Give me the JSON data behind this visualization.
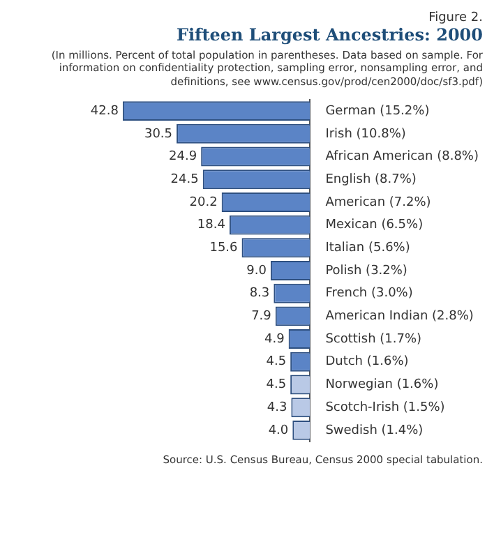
{
  "chart_data": {
    "type": "bar",
    "orientation": "horizontal",
    "title": "Fifteen Largest Ancestries: 2000",
    "subtitle": "(In millions. Percent of total population in parentheses. Data based on sample. For information on confidentiality protection, sampling error, nonsampling error, and definitions, see www.census.gov/prod/cen2000/doc/sf3.pdf)",
    "categories": [
      "German (15.2%)",
      "Irish (10.8%)",
      "African American (8.8%)",
      "English (8.7%)",
      "American (7.2%)",
      "Mexican (6.5%)",
      "Italian (5.6%)",
      "Polish (3.2%)",
      "French (3.0%)",
      "American Indian (2.8%)",
      "Scottish (1.7%)",
      "Dutch (1.6%)",
      "Norwegian (1.6%)",
      "Scotch-Irish (1.5%)",
      "Swedish (1.4%)"
    ],
    "values": [
      42.8,
      30.5,
      24.9,
      24.5,
      20.2,
      18.4,
      15.6,
      9.0,
      8.3,
      7.9,
      4.9,
      4.5,
      4.5,
      4.3,
      4.0
    ],
    "value_labels": [
      "42.8",
      "30.5",
      "24.9",
      "24.5",
      "20.2",
      "18.4",
      "15.6",
      "9.0",
      "8.3",
      "7.9",
      "4.9",
      "4.5",
      "4.5",
      "4.3",
      "4.0"
    ],
    "colors": [
      "#5b84c6",
      "#5b84c6",
      "#5b84c6",
      "#5b84c6",
      "#5b84c6",
      "#5b84c6",
      "#5b84c6",
      "#5b84c6",
      "#5b84c6",
      "#5b84c6",
      "#5b84c6",
      "#5b84c6",
      "#b9c9e6",
      "#b9c9e6",
      "#b9c9e6"
    ],
    "annotations": [
      "Figure 2.",
      "Source: U.S. Census Bureau, Census 2000 special tabulation."
    ],
    "legend": false
  }
}
